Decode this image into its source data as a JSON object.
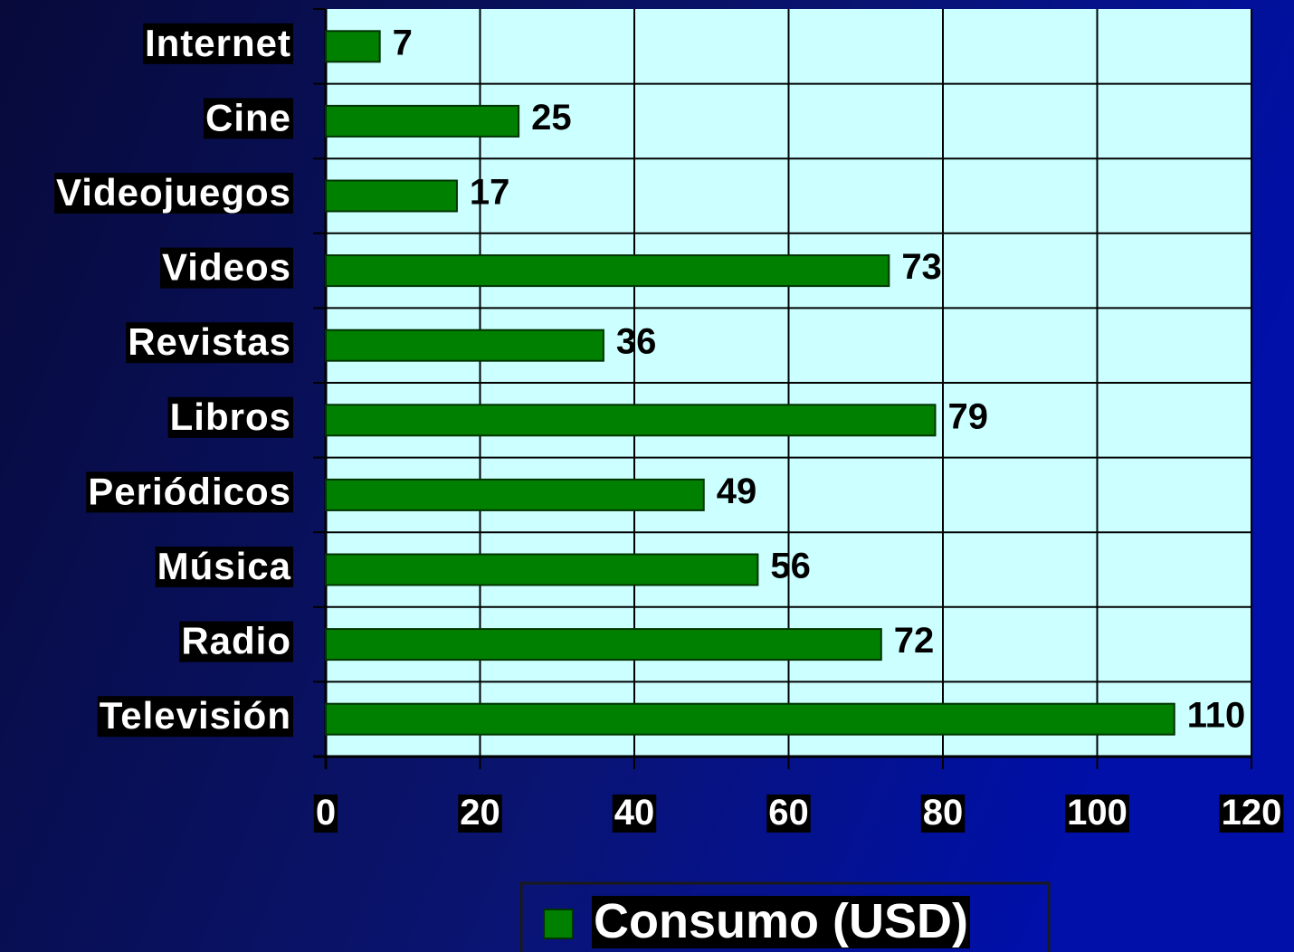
{
  "chart_data": {
    "type": "bar",
    "orientation": "horizontal",
    "categories": [
      "Internet",
      "Cine",
      "Videojuegos",
      "Videos",
      "Revistas",
      "Libros",
      "Periódicos",
      "Música",
      "Radio",
      "Televisión"
    ],
    "series": [
      {
        "name": "Consumo (USD)",
        "color": "#008000",
        "values": [
          7,
          25,
          17,
          73,
          36,
          79,
          49,
          56,
          72,
          110
        ]
      }
    ],
    "xlim": [
      0,
      120
    ],
    "xticks": [
      0,
      20,
      40,
      60,
      80,
      100,
      120
    ],
    "grid": true,
    "legend": "bottom"
  }
}
